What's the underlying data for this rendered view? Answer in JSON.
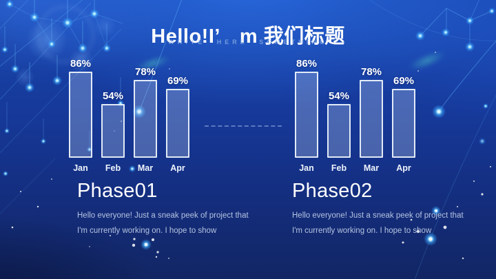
{
  "slide": {
    "title": "Hello!I’　m 我们标题",
    "subtitle": "WRITE HERE SOMETHING"
  },
  "chart_data": [
    {
      "type": "bar",
      "name": "phase01-monthly-bars",
      "categories": [
        "Jan",
        "Feb",
        "Mar",
        "Apr"
      ],
      "values": [
        86,
        54,
        78,
        69
      ],
      "value_labels": [
        "86%",
        "54%",
        "78%",
        "69%"
      ],
      "value_suffix": "%",
      "title": "",
      "xlabel": "",
      "ylabel": "",
      "ylim": [
        0,
        100
      ],
      "grid": false,
      "legend": "none",
      "bar_fill": "rgba(196,212,242,0.30)",
      "bar_border": "rgba(240,246,253,0.92)"
    },
    {
      "type": "bar",
      "name": "phase02-monthly-bars",
      "categories": [
        "Jan",
        "Feb",
        "Mar",
        "Apr"
      ],
      "values": [
        86,
        54,
        78,
        69
      ],
      "value_labels": [
        "86%",
        "54%",
        "78%",
        "69%"
      ],
      "value_suffix": "%",
      "title": "",
      "xlabel": "",
      "ylabel": "",
      "ylim": [
        0,
        100
      ],
      "grid": false,
      "legend": "none",
      "bar_fill": "rgba(196,212,242,0.30)",
      "bar_border": "rgba(240,246,253,0.92)"
    }
  ],
  "sections": [
    {
      "heading": "Phase01",
      "body": "Hello everyone! Just a sneak peek of project that I'm currently working on. I hope to show"
    },
    {
      "heading": "Phase02",
      "body": "Hello everyone! Just a sneak peek of project that I'm currently working on. I hope to show"
    }
  ],
  "colors": {
    "background_top": "#1b59d3",
    "background_bottom": "#122664",
    "glow_accent": "#3aa8ff",
    "teal_accent": "#58e0c8",
    "text_primary": "#ffffff",
    "text_muted": "rgba(213,227,246,0.82)"
  },
  "icons": {
    "decoration": "network-particles"
  }
}
